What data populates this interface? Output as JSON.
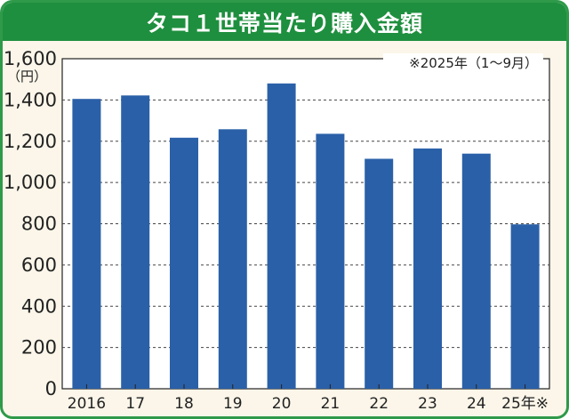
{
  "chart_data": {
    "type": "bar",
    "title": "タコ１世帯当たり購入金額",
    "ylabel": "（円）",
    "note": "※2025年（1～9月）",
    "categories": [
      "2016",
      "17",
      "18",
      "19",
      "20",
      "21",
      "22",
      "23",
      "24",
      "25年※"
    ],
    "values": [
      1405,
      1422,
      1217,
      1258,
      1480,
      1236,
      1115,
      1165,
      1140,
      797
    ],
    "ylim": [
      0,
      1600
    ],
    "yticks": [
      "0",
      "200",
      "400",
      "600",
      "800",
      "1,000",
      "1,200",
      "1,400",
      "1,600"
    ],
    "grid": true,
    "colors": {
      "bar": "#2a60a8",
      "title_bg": "#1e8f3e",
      "frame": "#2e9a4a",
      "background": "#fbf6e9"
    }
  }
}
